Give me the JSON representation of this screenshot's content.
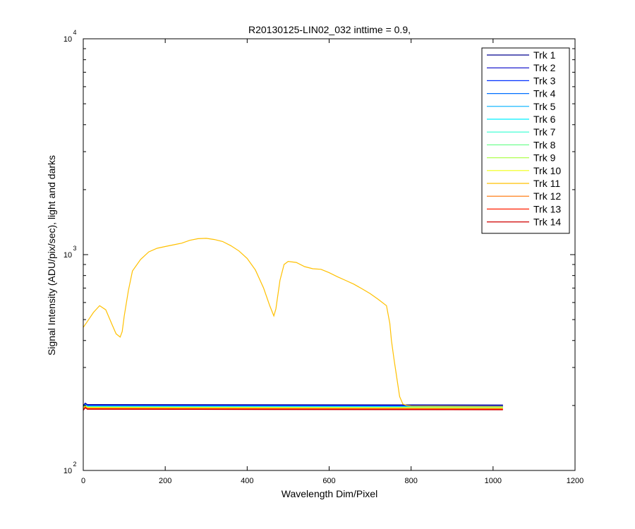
{
  "chart_data": {
    "type": "line",
    "title": "R20130125-LIN02_032 inttime = 0.9,",
    "xlabel": "Wavelength Dim/Pixel",
    "ylabel": "Signal Intensity (ADU/pix/sec), light and darks",
    "xlim": [
      0,
      1200
    ],
    "ylim": [
      100,
      10000
    ],
    "yscale": "log",
    "grid": false,
    "legend_position": "top-right",
    "x_ticks": [
      0,
      200,
      400,
      600,
      800,
      1000,
      1200
    ],
    "x_tick_labels": [
      "0",
      "200",
      "400",
      "600",
      "800",
      "1000",
      "1200"
    ],
    "y_ticks": [
      {
        "base": "10",
        "exp": "2"
      },
      {
        "base": "10",
        "exp": "3"
      },
      {
        "base": "10",
        "exp": "4"
      }
    ],
    "series": [
      {
        "name": "Trk 1",
        "color": "#00008f",
        "x": [
          0,
          5,
          10,
          1024
        ],
        "y": [
          200,
          205,
          202,
          201
        ]
      },
      {
        "name": "Trk 2",
        "color": "#0000c8",
        "x": [
          0,
          5,
          10,
          1024
        ],
        "y": [
          199,
          204,
          201,
          200
        ]
      },
      {
        "name": "Trk 3",
        "color": "#0030ff",
        "x": [
          0,
          5,
          10,
          1024
        ],
        "y": [
          198,
          203,
          200,
          199
        ]
      },
      {
        "name": "Trk 4",
        "color": "#0070ff",
        "x": [
          0,
          5,
          10,
          1024
        ],
        "y": [
          197,
          202,
          199,
          198
        ]
      },
      {
        "name": "Trk 5",
        "color": "#00b0ff",
        "x": [
          0,
          5,
          10,
          1024
        ],
        "y": [
          196,
          201,
          198,
          197
        ]
      },
      {
        "name": "Trk 6",
        "color": "#00f0ff",
        "x": [
          0,
          5,
          10,
          1024
        ],
        "y": [
          196,
          201,
          198,
          197
        ]
      },
      {
        "name": "Trk 7",
        "color": "#30ffd0",
        "x": [
          0,
          5,
          10,
          1024
        ],
        "y": [
          195,
          200,
          197,
          196
        ]
      },
      {
        "name": "Trk 8",
        "color": "#70ff90",
        "x": [
          0,
          5,
          10,
          1024
        ],
        "y": [
          195,
          200,
          197,
          196
        ]
      },
      {
        "name": "Trk 9",
        "color": "#b0ff50",
        "x": [
          0,
          5,
          10,
          1024
        ],
        "y": [
          194,
          199,
          196,
          195
        ]
      },
      {
        "name": "Trk 10",
        "color": "#f0ff10",
        "x": [
          0,
          5,
          10,
          1024
        ],
        "y": [
          194,
          199,
          196,
          195
        ]
      },
      {
        "name": "Trk 11",
        "color": "#ffc000",
        "x": [
          0,
          10,
          25,
          40,
          55,
          70,
          80,
          90,
          95,
          100,
          110,
          120,
          140,
          160,
          180,
          200,
          220,
          240,
          260,
          280,
          300,
          320,
          340,
          360,
          380,
          400,
          420,
          440,
          455,
          465,
          470,
          480,
          490,
          500,
          520,
          540,
          560,
          580,
          600,
          620,
          640,
          660,
          680,
          700,
          720,
          740,
          748,
          752,
          758,
          765,
          772,
          780,
          790,
          800,
          1024
        ],
        "y": [
          460,
          490,
          540,
          580,
          555,
          475,
          430,
          415,
          440,
          520,
          680,
          840,
          950,
          1030,
          1070,
          1090,
          1110,
          1130,
          1165,
          1185,
          1190,
          1175,
          1150,
          1100,
          1040,
          960,
          850,
          700,
          580,
          520,
          560,
          760,
          900,
          930,
          920,
          880,
          860,
          855,
          825,
          790,
          760,
          730,
          695,
          660,
          620,
          580,
          480,
          400,
          330,
          270,
          220,
          203,
          200,
          199,
          198
        ]
      },
      {
        "name": "Trk 12",
        "color": "#ff7000",
        "x": [
          0,
          5,
          10,
          1024
        ],
        "y": [
          192,
          197,
          194,
          193
        ]
      },
      {
        "name": "Trk 13",
        "color": "#ff2000",
        "x": [
          0,
          5,
          10,
          1024
        ],
        "y": [
          191,
          196,
          193,
          192
        ]
      },
      {
        "name": "Trk 14",
        "color": "#d00000",
        "x": [
          0,
          5,
          10,
          1024
        ],
        "y": [
          190,
          195,
          192,
          191
        ]
      }
    ]
  }
}
